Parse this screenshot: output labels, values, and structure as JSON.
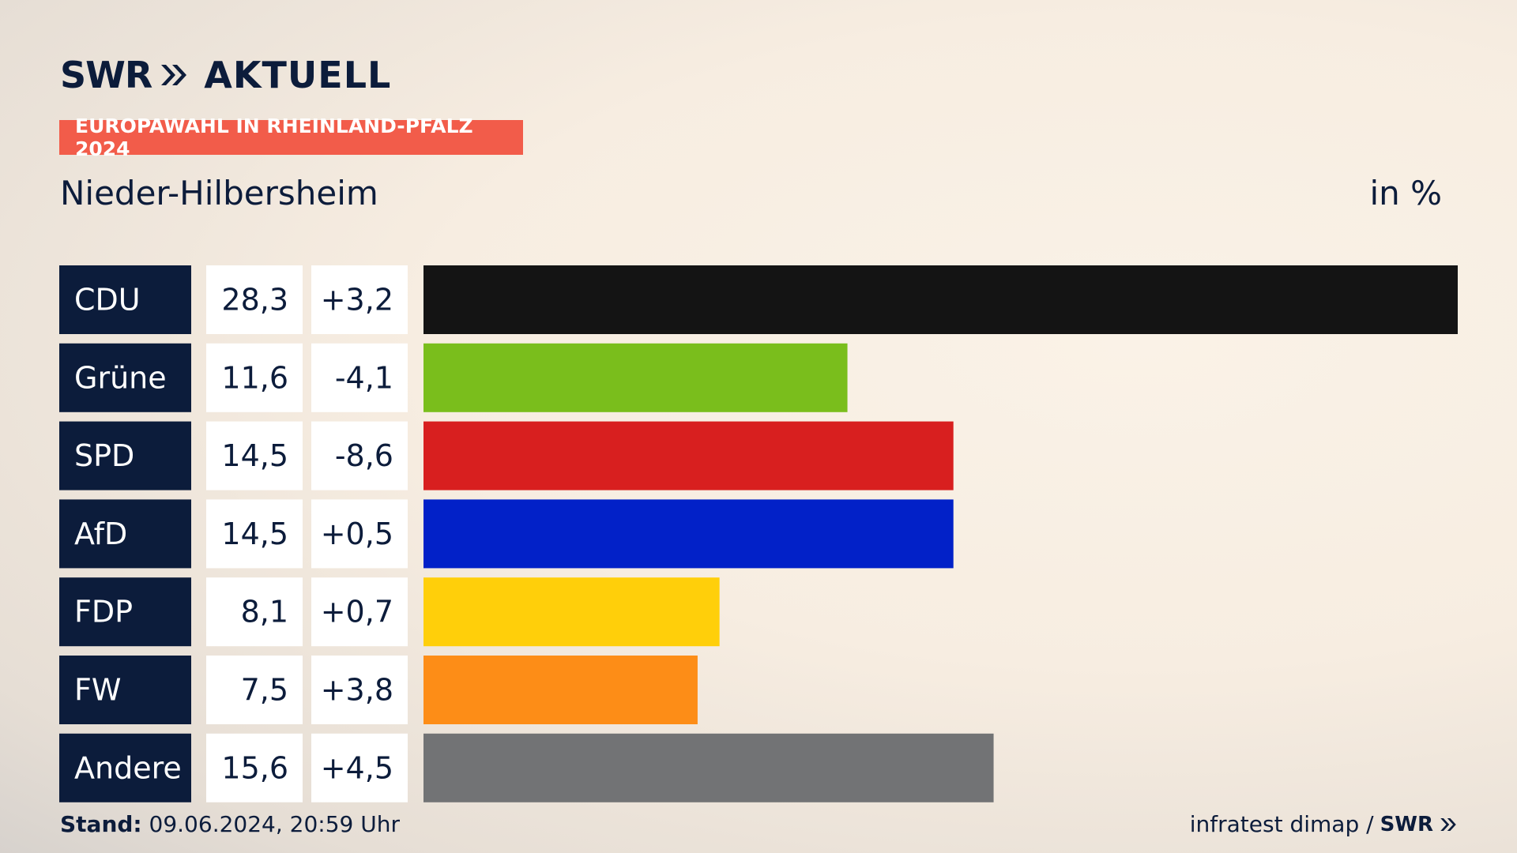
{
  "header": {
    "brand": "SWR",
    "product": "AKTUELL",
    "badge": "EUROPAWAHL IN RHEINLAND-PFALZ 2024",
    "subtitle": "Nieder-Hilbersheim",
    "unit": "in %"
  },
  "footer": {
    "stand_label": "Stand:",
    "stand_value": "09.06.2024, 20:59 Uhr",
    "source": "infratest dimap /",
    "source_brand": "SWR"
  },
  "colors": {
    "label_bg": "#0c1c3b",
    "value_bg": "#ffffff",
    "badge": "#f25c4a"
  },
  "chart_data": {
    "type": "bar",
    "orientation": "horizontal",
    "title": "Nieder-Hilbersheim",
    "unit": "in %",
    "categories": [
      "CDU",
      "Grüne",
      "SPD",
      "AfD",
      "FDP",
      "FW",
      "Andere"
    ],
    "values": [
      28.3,
      11.6,
      14.5,
      14.5,
      8.1,
      7.5,
      15.6
    ],
    "value_labels": [
      "28,3",
      "11,6",
      "14,5",
      "14,5",
      "8,1",
      "7,5",
      "15,6"
    ],
    "changes": [
      3.2,
      -4.1,
      -8.6,
      0.5,
      0.7,
      3.8,
      4.5
    ],
    "change_labels": [
      "+3,2",
      "-4,1",
      "-8,6",
      "+0,5",
      "+0,7",
      "+3,8",
      "+4,5"
    ],
    "bar_colors": [
      "#141414",
      "#7abe1c",
      "#d81f1f",
      "#0221c8",
      "#ffcf0a",
      "#fd8d17",
      "#727375"
    ],
    "xlim": [
      0,
      28.3
    ],
    "grid": false,
    "legend": "none"
  }
}
